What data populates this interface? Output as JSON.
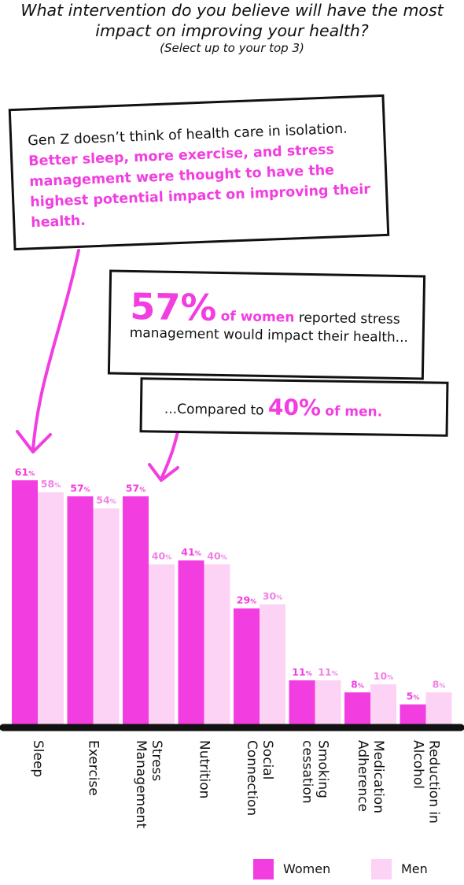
{
  "title": {
    "main": "What intervention do you believe will have the most impact on improving your health?",
    "note": "(Select up to your top 3)"
  },
  "callouts": {
    "intro_plain": "Gen Z doesn’t think of health care in isolation.",
    "intro_highlight": "Better sleep, more exercise, and stress management were thought to have the highest potential impact on improving their health.",
    "stat_value": "57%",
    "stat_group": "of women",
    "stat_text": "reported stress management would impact their health...",
    "compare_prefix": "...Compared to",
    "compare_value": "40%",
    "compare_group": "of men."
  },
  "colors": {
    "women": "#f23ee0",
    "men": "#fcd2f5",
    "axis": "#111111"
  },
  "chart_data": {
    "type": "bar",
    "categories": [
      "Sleep",
      "Exercise",
      "Stress Management",
      "Nutrition",
      "Social Connection",
      "Smoking cessation",
      "Medication Adherence",
      "Reduction in Alcohol"
    ],
    "category_lines": [
      [
        "Sleep"
      ],
      [
        "Exercise"
      ],
      [
        "Stress",
        "Management"
      ],
      [
        "Nutrition"
      ],
      [
        "Social",
        "Connection"
      ],
      [
        "Smoking",
        "cessation"
      ],
      [
        "Medication",
        "Adherence"
      ],
      [
        "Reduction in",
        "Alcohol"
      ]
    ],
    "series": [
      {
        "name": "Women",
        "values": [
          61,
          57,
          57,
          41,
          29,
          11,
          8,
          5
        ]
      },
      {
        "name": "Men",
        "values": [
          58,
          54,
          40,
          40,
          30,
          11,
          10,
          8
        ]
      }
    ],
    "value_suffix": "%",
    "ylim": [
      0,
      61
    ],
    "legend_position": "bottom-right"
  }
}
